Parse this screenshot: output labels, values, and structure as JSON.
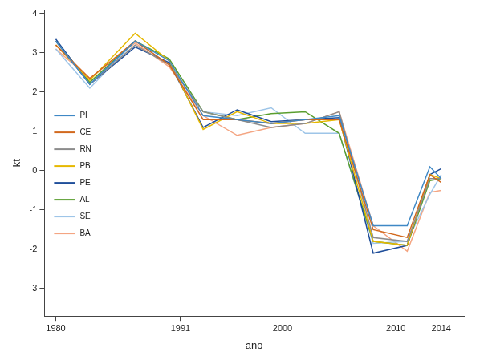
{
  "chart_data": {
    "type": "line",
    "x_label": "ano",
    "y_label": "kt",
    "x": [
      1980,
      1983,
      1987,
      1990,
      1993,
      1996,
      1999,
      2002,
      2005,
      2008,
      2011,
      2013,
      2014
    ],
    "series": [
      {
        "name": "PI",
        "color": "#3f88c5",
        "values": [
          3.3,
          2.2,
          3.3,
          2.8,
          1.4,
          1.3,
          1.2,
          1.3,
          1.4,
          -1.4,
          -1.4,
          0.1,
          -0.2
        ]
      },
      {
        "name": "CE",
        "color": "#d2691e",
        "values": [
          3.2,
          2.35,
          3.3,
          2.7,
          1.3,
          1.3,
          1.2,
          1.3,
          1.3,
          -1.5,
          -1.7,
          -0.1,
          -0.3
        ]
      },
      {
        "name": "RN",
        "color": "#8c8c8c",
        "values": [
          3.3,
          2.2,
          3.2,
          2.7,
          1.5,
          1.3,
          1.1,
          1.2,
          1.5,
          -1.7,
          -1.8,
          -0.2,
          -0.2
        ]
      },
      {
        "name": "PB",
        "color": "#e6b800",
        "values": [
          3.2,
          2.3,
          3.5,
          2.8,
          1.05,
          1.5,
          1.2,
          1.2,
          1.3,
          -1.8,
          -1.9,
          -0.1,
          -0.2
        ]
      },
      {
        "name": "PE",
        "color": "#1f4e9a",
        "values": [
          3.35,
          2.2,
          3.15,
          2.75,
          1.1,
          1.55,
          1.25,
          1.3,
          1.35,
          -2.1,
          -1.9,
          -0.1,
          0.05
        ]
      },
      {
        "name": "AL",
        "color": "#5a9e2f",
        "values": [
          3.3,
          2.25,
          3.3,
          2.85,
          1.5,
          1.3,
          1.45,
          1.5,
          0.95,
          -1.8,
          -1.9,
          -0.25,
          -0.2
        ]
      },
      {
        "name": "SE",
        "color": "#9ec5e8",
        "values": [
          3.1,
          2.1,
          3.3,
          2.7,
          1.5,
          1.4,
          1.6,
          0.95,
          0.95,
          -1.85,
          -1.8,
          -0.6,
          -0.1
        ]
      },
      {
        "name": "BA",
        "color": "#f4a582",
        "values": [
          3.1,
          2.35,
          3.25,
          2.65,
          1.4,
          0.9,
          1.1,
          1.2,
          1.5,
          -1.4,
          -2.05,
          -0.55,
          -0.5
        ]
      }
    ],
    "xlim": [
      1979,
      2016
    ],
    "xticks": [
      1980,
      1991,
      2000,
      2010,
      2014
    ],
    "ylim": [
      -3.7,
      4.1
    ],
    "yticks": [
      -3,
      -2,
      -1,
      0,
      1,
      2,
      3,
      4
    ],
    "grid": false,
    "legend": "left"
  }
}
